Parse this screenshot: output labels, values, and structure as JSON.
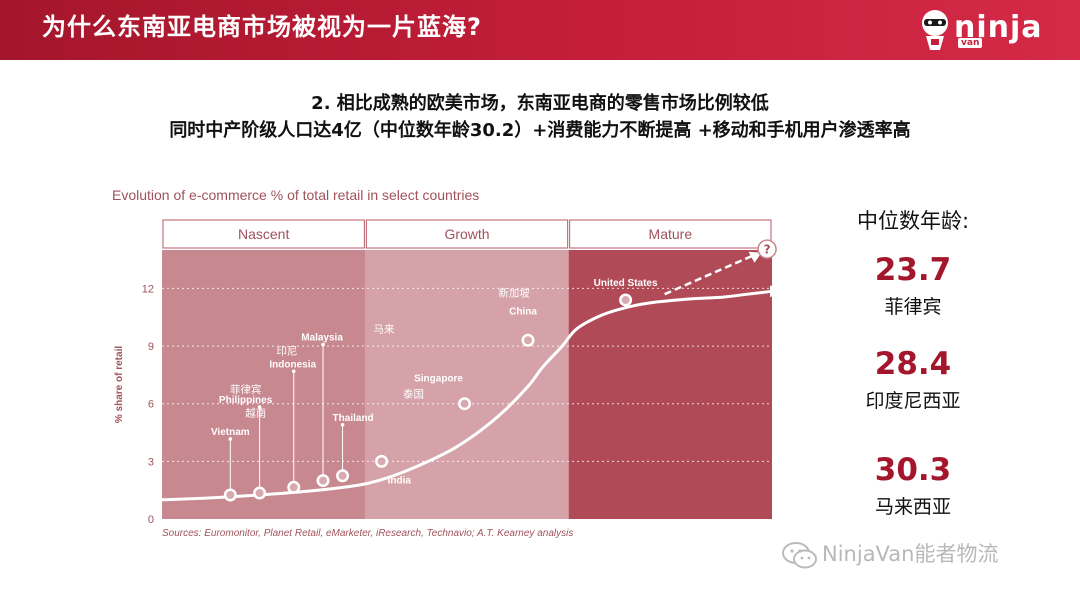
{
  "header": {
    "title": "为什么东南亚电商市场被视为一片蓝海?",
    "logo_text": "ninja",
    "logo_sub": "van"
  },
  "subtitle": {
    "line1": "2. 相比成熟的欧美市场，东南亚电商的零售市场比例较低",
    "line2": "同时中产阶级人口达4亿（中位数年龄30.2）+消费能力不断提高 +移动和手机用户渗透率高"
  },
  "median_age": {
    "title": "中位数年龄:",
    "items": [
      {
        "value": "23.7",
        "country": "菲律宾"
      },
      {
        "value": "28.4",
        "country": "印度尼西亚"
      },
      {
        "value": "30.3",
        "country": "马来西亚"
      }
    ]
  },
  "watermark": "NinjaVan能者物流",
  "colors": {
    "brand_red": "#c41e3a",
    "nascent_fill": "#c88890",
    "growth_fill": "#d4a2a8",
    "mature_fill": "#b14a57"
  },
  "chart_data": {
    "type": "line",
    "title": "Evolution of e-commerce % of total retail in select countries",
    "ylabel": "% share of retail",
    "xlabel": "",
    "ylim": [
      0,
      14
    ],
    "yticks": [
      0,
      3,
      6,
      9,
      12
    ],
    "grid": true,
    "phases": [
      "Nascent",
      "Growth",
      "Mature"
    ],
    "source": "Sources: Euromonitor, Planet Retail, eMarketer, iResearch, Technavio; A.T. Kearney analysis",
    "curve": [
      [
        0,
        1.0
      ],
      [
        10,
        1.1
      ],
      [
        20,
        1.25
      ],
      [
        30,
        1.45
      ],
      [
        40,
        1.75
      ],
      [
        45,
        2.05
      ],
      [
        50,
        2.5
      ],
      [
        55,
        3.05
      ],
      [
        60,
        3.7
      ],
      [
        65,
        4.55
      ],
      [
        70,
        5.6
      ],
      [
        75,
        6.9
      ],
      [
        78,
        7.9
      ],
      [
        82,
        9.0
      ],
      [
        85,
        9.9
      ],
      [
        90,
        10.6
      ],
      [
        95,
        11.0
      ],
      [
        100,
        11.25
      ],
      [
        108,
        11.45
      ],
      [
        115,
        11.55
      ],
      [
        120,
        11.7
      ],
      [
        125,
        11.85
      ]
    ],
    "points": [
      {
        "label": "Vietnam",
        "x": 14,
        "y": 1.25,
        "cn": ""
      },
      {
        "label": "Philippines",
        "x": 20,
        "y": 1.35,
        "cn": "菲律宾"
      },
      {
        "label": "Indonesia",
        "x": 27,
        "y": 1.65,
        "cn": "越南"
      },
      {
        "label": "Malaysia",
        "x": 33,
        "y": 2.0,
        "cn": "印尼"
      },
      {
        "label": "Thailand",
        "x": 37,
        "y": 2.25,
        "cn": ""
      },
      {
        "label": "India",
        "x": 45,
        "y": 3.0,
        "cn": ""
      },
      {
        "label": "Singapore",
        "x": 62,
        "y": 6.0,
        "cn": "泰国"
      },
      {
        "label": "China",
        "x": 75,
        "y": 9.3,
        "cn": "新加坡"
      },
      {
        "label": "United States",
        "x": 95,
        "y": 11.4,
        "cn": ""
      }
    ],
    "extra_cn_label": "马来",
    "question_mark": "?"
  }
}
